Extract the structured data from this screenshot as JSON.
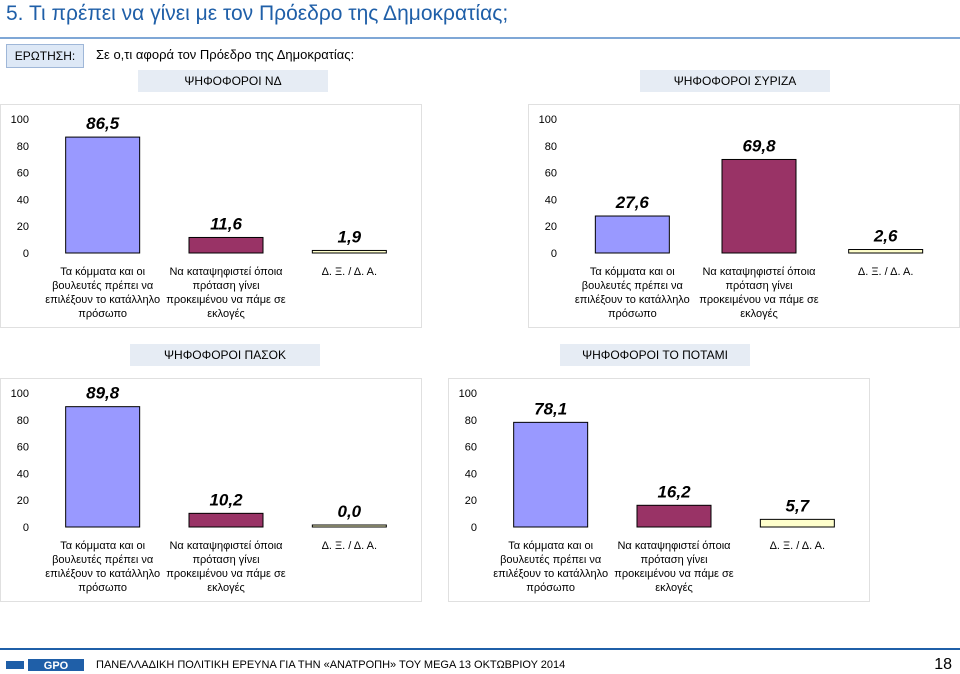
{
  "header": {
    "title": "5.   Τι πρέπει να γίνει με τον Πρόεδρο της Δημοκρατίας;",
    "question_label": "ΕΡΩΤΗΣΗ:",
    "question_text": "Σε ο,τι αφορά τον Πρόεδρο της Δημοκρατίας:"
  },
  "colors": {
    "bar_1": "#9999ff",
    "bar_2": "#993366",
    "bar_3": "#ffffcc",
    "header_bg": "#e6ecf4"
  },
  "chart_data": [
    {
      "type": "bar",
      "title": "ΨΗΦΟΦΟΡΟΙ ΝΔ",
      "categories": [
        "Τα κόμματα και οι βουλευτές πρέπει να επιλέξουν το κατάλληλο πρόσωπο",
        "Να καταψηφιστεί όποια πρόταση γίνει προκειμένου να πάμε σε εκλογές",
        "Δ. Ξ. / Δ. Α."
      ],
      "values": [
        86.5,
        11.6,
        1.9
      ],
      "value_labels": [
        "86,5",
        "11,6",
        "1,9"
      ],
      "yticks": [
        "0",
        "20",
        "40",
        "60",
        "80",
        "100"
      ],
      "ylim": [
        0,
        100
      ]
    },
    {
      "type": "bar",
      "title": "ΨΗΦΟΦΟΡΟΙ ΣΥΡΙΖΑ",
      "categories": [
        "Τα κόμματα και οι βουλευτές πρέπει να επιλέξουν το κατάλληλο πρόσωπο",
        "Να καταψηφιστεί όποια πρόταση γίνει προκειμένου να πάμε σε εκλογές",
        "Δ. Ξ. / Δ. Α."
      ],
      "values": [
        27.6,
        69.8,
        2.6
      ],
      "value_labels": [
        "27,6",
        "69,8",
        "2,6"
      ],
      "yticks": [
        "0",
        "20",
        "40",
        "60",
        "80",
        "100"
      ],
      "ylim": [
        0,
        100
      ]
    },
    {
      "type": "bar",
      "title": "ΨΗΦΟΦΟΡΟΙ ΠΑΣΟΚ",
      "categories": [
        "Τα κόμματα και οι βουλευτές πρέπει να επιλέξουν το κατάλληλο πρόσωπο",
        "Να καταψηφιστεί όποια πρόταση γίνει προκειμένου να πάμε σε εκλογές",
        "Δ. Ξ. / Δ. Α."
      ],
      "values": [
        89.8,
        10.2,
        0.0
      ],
      "value_labels": [
        "89,8",
        "10,2",
        "0,0"
      ],
      "yticks": [
        "0",
        "20",
        "40",
        "60",
        "80",
        "100"
      ],
      "ylim": [
        0,
        100
      ]
    },
    {
      "type": "bar",
      "title": "ΨΗΦΟΦΟΡΟΙ ΤΟ ΠΟΤΑΜΙ",
      "categories": [
        "Τα κόμματα και οι βουλευτές πρέπει να επιλέξουν το κατάλληλο πρόσωπο",
        "Να καταψηφιστεί όποια πρόταση γίνει προκειμένου να πάμε σε εκλογές",
        "Δ. Ξ. / Δ. Α."
      ],
      "values": [
        78.1,
        16.2,
        5.7
      ],
      "value_labels": [
        "78,1",
        "16,2",
        "5,7"
      ],
      "yticks": [
        "0",
        "20",
        "40",
        "60",
        "80",
        "100"
      ],
      "ylim": [
        0,
        100
      ]
    }
  ],
  "footer": {
    "logo_text": "GPO",
    "text": "ΠΑΝΕΛΛΑΔΙΚΗ ΠΟΛΙΤΙΚΗ ΕΡΕΥΝΑ ΓΙΑ ΤΗΝ «ΑΝΑΤΡΟΠΗ» ΤΟΥ MEGA  13  ΟΚΤΩΒΡΙΟΥ  2014",
    "page_number": "18"
  }
}
